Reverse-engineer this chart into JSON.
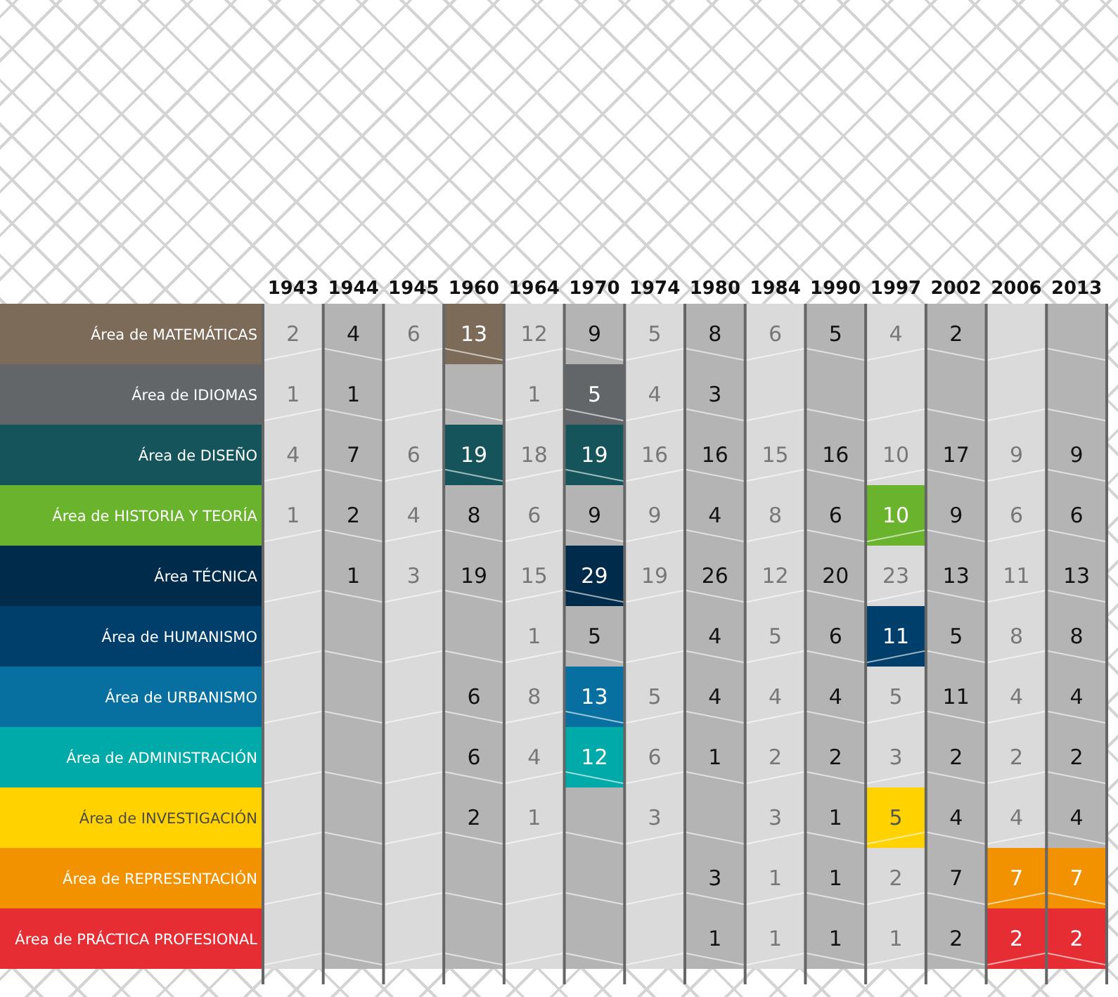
{
  "chart_data": {
    "type": "heatmap",
    "data_labels": true,
    "categories": [
      "1943",
      "1944",
      "1945",
      "1960",
      "1964",
      "1970",
      "1974",
      "1980",
      "1984",
      "1990",
      "1997",
      "2002",
      "2006",
      "2013"
    ],
    "y_categories": [
      "Área de MATEMÁTICAS",
      "Área de IDIOMAS",
      "Área de DISEÑO",
      "Área de HISTORIA Y TEORÍA",
      "Área TÉCNICA",
      "Área de HUMANISMO",
      "Área de URBANISMO",
      "Área de ADMINISTRACIÓN",
      "Área de INVESTIGACIÓN",
      "Área de REPRESENTACIÓN",
      "Área de PRÁCTICA PROFESIONAL"
    ],
    "cells": [
      [
        2,
        4,
        6,
        13,
        12,
        9,
        5,
        8,
        6,
        5,
        4,
        2,
        null,
        null
      ],
      [
        1,
        1,
        null,
        null,
        1,
        5,
        4,
        3,
        null,
        null,
        null,
        null,
        null,
        null
      ],
      [
        4,
        7,
        6,
        19,
        18,
        19,
        16,
        16,
        15,
        16,
        10,
        17,
        9,
        9
      ],
      [
        1,
        2,
        4,
        8,
        6,
        9,
        9,
        4,
        8,
        6,
        10,
        9,
        6,
        6
      ],
      [
        null,
        1,
        3,
        19,
        15,
        29,
        19,
        26,
        12,
        20,
        23,
        13,
        11,
        13
      ],
      [
        null,
        null,
        null,
        null,
        1,
        5,
        null,
        4,
        5,
        6,
        11,
        5,
        8,
        8
      ],
      [
        null,
        null,
        null,
        6,
        8,
        13,
        5,
        4,
        4,
        4,
        5,
        11,
        4,
        4
      ],
      [
        null,
        null,
        null,
        6,
        4,
        12,
        6,
        1,
        2,
        2,
        3,
        2,
        2,
        2
      ],
      [
        null,
        null,
        null,
        2,
        1,
        null,
        3,
        null,
        3,
        1,
        5,
        4,
        4,
        4
      ],
      [
        null,
        null,
        null,
        null,
        null,
        null,
        null,
        3,
        1,
        1,
        2,
        7,
        7,
        7
      ],
      [
        null,
        null,
        null,
        null,
        null,
        null,
        null,
        1,
        1,
        1,
        1,
        2,
        2,
        2
      ]
    ],
    "colors": [
      [
        null,
        null,
        null,
        "#7d6b5a",
        null,
        null,
        null,
        null,
        null,
        null,
        null,
        null,
        null,
        null
      ],
      [
        null,
        null,
        null,
        null,
        null,
        "#636669",
        null,
        null,
        null,
        null,
        null,
        null,
        null,
        null
      ],
      [
        null,
        null,
        null,
        "#14545a",
        null,
        "#14545a",
        null,
        null,
        null,
        null,
        null,
        null,
        null,
        null
      ],
      [
        null,
        null,
        null,
        null,
        null,
        null,
        null,
        null,
        null,
        null,
        "#6ab42d",
        null,
        null,
        null
      ],
      [
        null,
        null,
        null,
        null,
        null,
        "#002b4a",
        null,
        null,
        null,
        null,
        null,
        null,
        null,
        null
      ],
      [
        null,
        null,
        null,
        null,
        null,
        null,
        null,
        null,
        null,
        null,
        "#003f6b",
        null,
        null,
        null
      ],
      [
        null,
        null,
        null,
        null,
        null,
        "#0770a0",
        null,
        null,
        null,
        null,
        null,
        null,
        null,
        null
      ],
      [
        null,
        null,
        null,
        null,
        null,
        "#00aaa8",
        null,
        null,
        null,
        null,
        null,
        null,
        null,
        null
      ],
      [
        null,
        null,
        null,
        null,
        null,
        null,
        null,
        null,
        null,
        null,
        "#ffd200",
        null,
        null,
        null
      ],
      [
        null,
        null,
        null,
        null,
        null,
        null,
        null,
        null,
        null,
        null,
        null,
        null,
        "#f39200",
        "#f39200"
      ],
      [
        null,
        null,
        null,
        null,
        null,
        null,
        null,
        null,
        null,
        null,
        null,
        null,
        "#e52d33",
        "#e52d33"
      ]
    ]
  }
}
